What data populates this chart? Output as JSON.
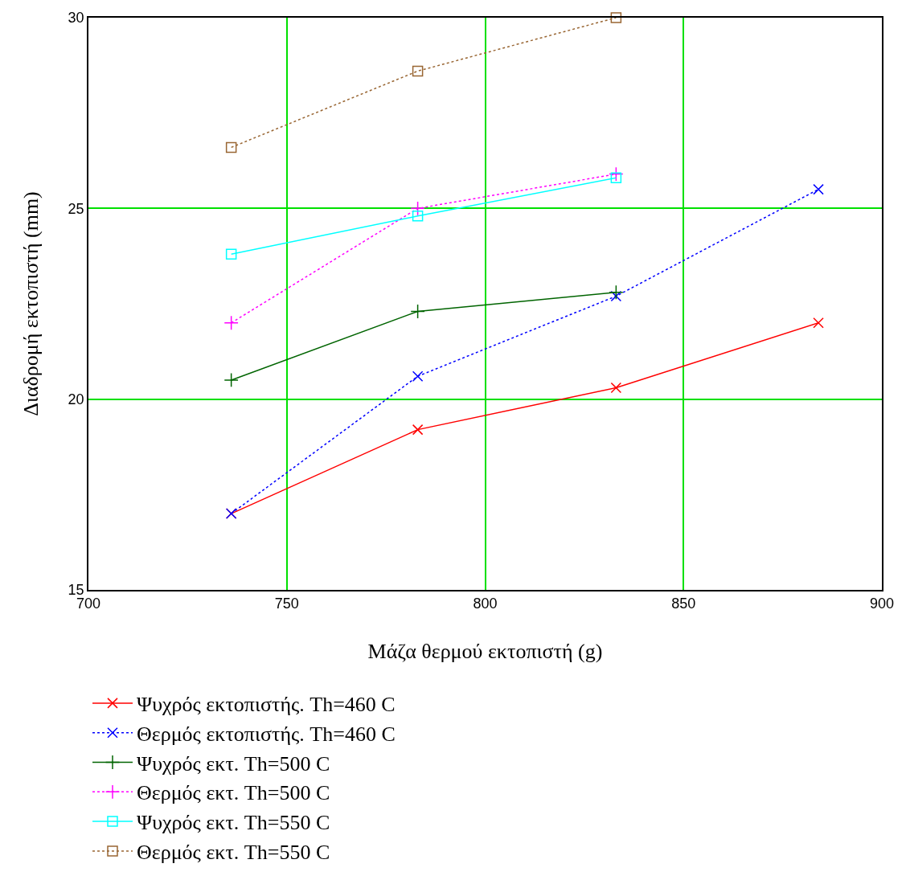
{
  "chart_data": {
    "type": "line",
    "xlabel": "Μάζα θερμού εκτοπιστή (g)",
    "ylabel": "Διαδρομή εκτοπιστή (mm)",
    "xlim": [
      700,
      900
    ],
    "xticks": [
      700,
      750,
      800,
      850,
      900
    ],
    "ylim": [
      15,
      30
    ],
    "yticks": [
      15,
      20,
      25,
      30
    ],
    "grid": true,
    "legend": "bottom",
    "series": [
      {
        "name": "Ψυχρός εκτοπιστής. Th=460 C",
        "color": "#ff0000",
        "marker": "cross",
        "line_style": "solid",
        "x": [
          736,
          783,
          833,
          884
        ],
        "values": [
          17.0,
          19.2,
          20.3,
          22.0
        ]
      },
      {
        "name": "Θερμός εκτοπιστής. Th=460 C",
        "color": "#0000ff",
        "marker": "cross",
        "line_style": "dotted",
        "x": [
          736,
          783,
          833,
          884
        ],
        "values": [
          17.0,
          20.6,
          22.7,
          25.5
        ]
      },
      {
        "name": "Ψυχρός εκτ. Th=500 C",
        "color": "#006400",
        "marker": "plus",
        "line_style": "solid",
        "x": [
          736,
          783,
          833
        ],
        "values": [
          20.5,
          22.3,
          22.8
        ]
      },
      {
        "name": "Θερμός εκτ. Th=500 C",
        "color": "#ff00ff",
        "marker": "plus",
        "line_style": "dotted",
        "x": [
          736,
          783,
          833
        ],
        "values": [
          22.0,
          25.0,
          25.9
        ]
      },
      {
        "name": "Ψυχρός εκτ. Th=550 C",
        "color": "#00ffff",
        "marker": "square",
        "line_style": "solid",
        "x": [
          736,
          783,
          833
        ],
        "values": [
          23.8,
          24.8,
          25.8
        ]
      },
      {
        "name": "Θερμός εκτ. Th=550 C",
        "color": "#996633",
        "marker": "square",
        "line_style": "dotted",
        "x": [
          736,
          783,
          833
        ],
        "values": [
          26.6,
          28.6,
          30.0
        ]
      }
    ]
  }
}
